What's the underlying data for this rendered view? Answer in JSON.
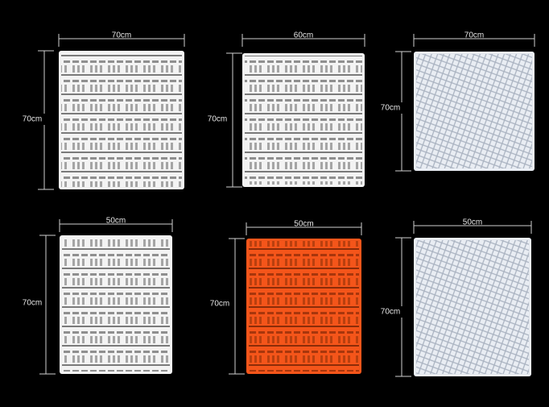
{
  "panels": [
    {
      "width_label": "70cm",
      "height_label": "70cm",
      "color": "#f3f3f3"
    },
    {
      "width_label": "60cm",
      "height_label": "70cm",
      "color": "#f3f3f3"
    },
    {
      "width_label": "70cm",
      "height_label": "70cm",
      "color": "#e9edf3"
    },
    {
      "width_label": "50cm",
      "height_label": "70cm",
      "color": "#f3f3f3"
    },
    {
      "width_label": "50cm",
      "height_label": "70cm",
      "color": "#f4551a"
    },
    {
      "width_label": "50cm",
      "height_label": "70cm",
      "color": "#e9edf3"
    }
  ]
}
